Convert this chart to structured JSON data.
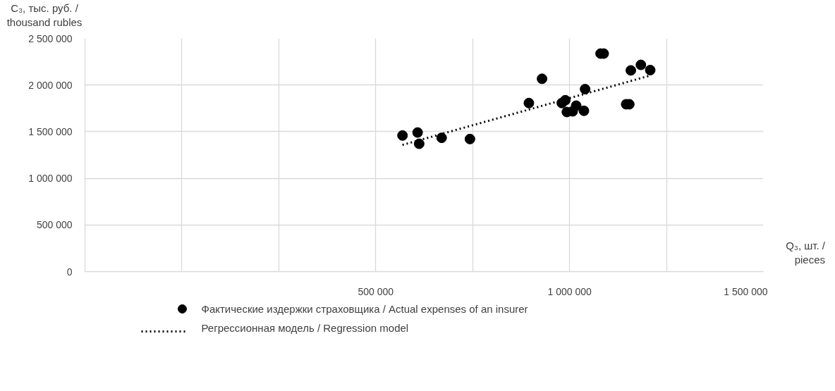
{
  "chart_data": {
    "type": "scatter",
    "xlabel": "Q₃, шт. / pieces",
    "ylabel": "C₃, тыс. руб. / thousand rubles",
    "xlim": [
      -250000,
      1500000
    ],
    "xticks": [
      {
        "value": -250000,
        "label": null
      },
      {
        "value": 0,
        "label": null
      },
      {
        "value": 250000,
        "label": null
      },
      {
        "value": 500000,
        "label": "500 000"
      },
      {
        "value": 750000,
        "label": null
      },
      {
        "value": 1000000,
        "label": "1 000 000"
      },
      {
        "value": 1250000,
        "label": null
      },
      {
        "value": 1500000,
        "label": "1 500 000"
      }
    ],
    "ylim": [
      0,
      2500000
    ],
    "yticks": [
      0,
      {
        "value": 500000,
        "label": "500 000"
      },
      {
        "value": 1000000,
        "label": "1 000 000"
      },
      {
        "value": 1500000,
        "label": "1 500 000"
      },
      {
        "value": 2000000,
        "label": "2 000 000"
      },
      {
        "value": 2500000,
        "label": "2 500 000"
      }
    ],
    "grid": true,
    "legend": "bottom",
    "series": [
      {
        "name": "Фактические издержки страховщика / Actual expenses of an insurer",
        "marker": "circle",
        "color": "#000000",
        "x": [
          569000,
          608000,
          612000,
          670000,
          743000,
          895000,
          929000,
          980000,
          989000,
          993000,
          1008000,
          1017000,
          1037000,
          1040000,
          1080000,
          1088000,
          1146000,
          1154000,
          1158000,
          1184000,
          1208000
        ],
        "values": [
          1459000,
          1491000,
          1370000,
          1434000,
          1421000,
          1807000,
          2067000,
          1807000,
          1837000,
          1711000,
          1718000,
          1779000,
          1724000,
          1956000,
          2337000,
          2337000,
          1794000,
          1794000,
          2157000,
          2216000,
          2160000
        ]
      },
      {
        "name": "Регрессионная модель / Regression model",
        "type": "line",
        "line_style": "dotted",
        "marker": "none",
        "color": "#000000",
        "x": [
          569000,
          1204000
        ],
        "values": [
          1358000,
          2097000
        ]
      }
    ]
  }
}
